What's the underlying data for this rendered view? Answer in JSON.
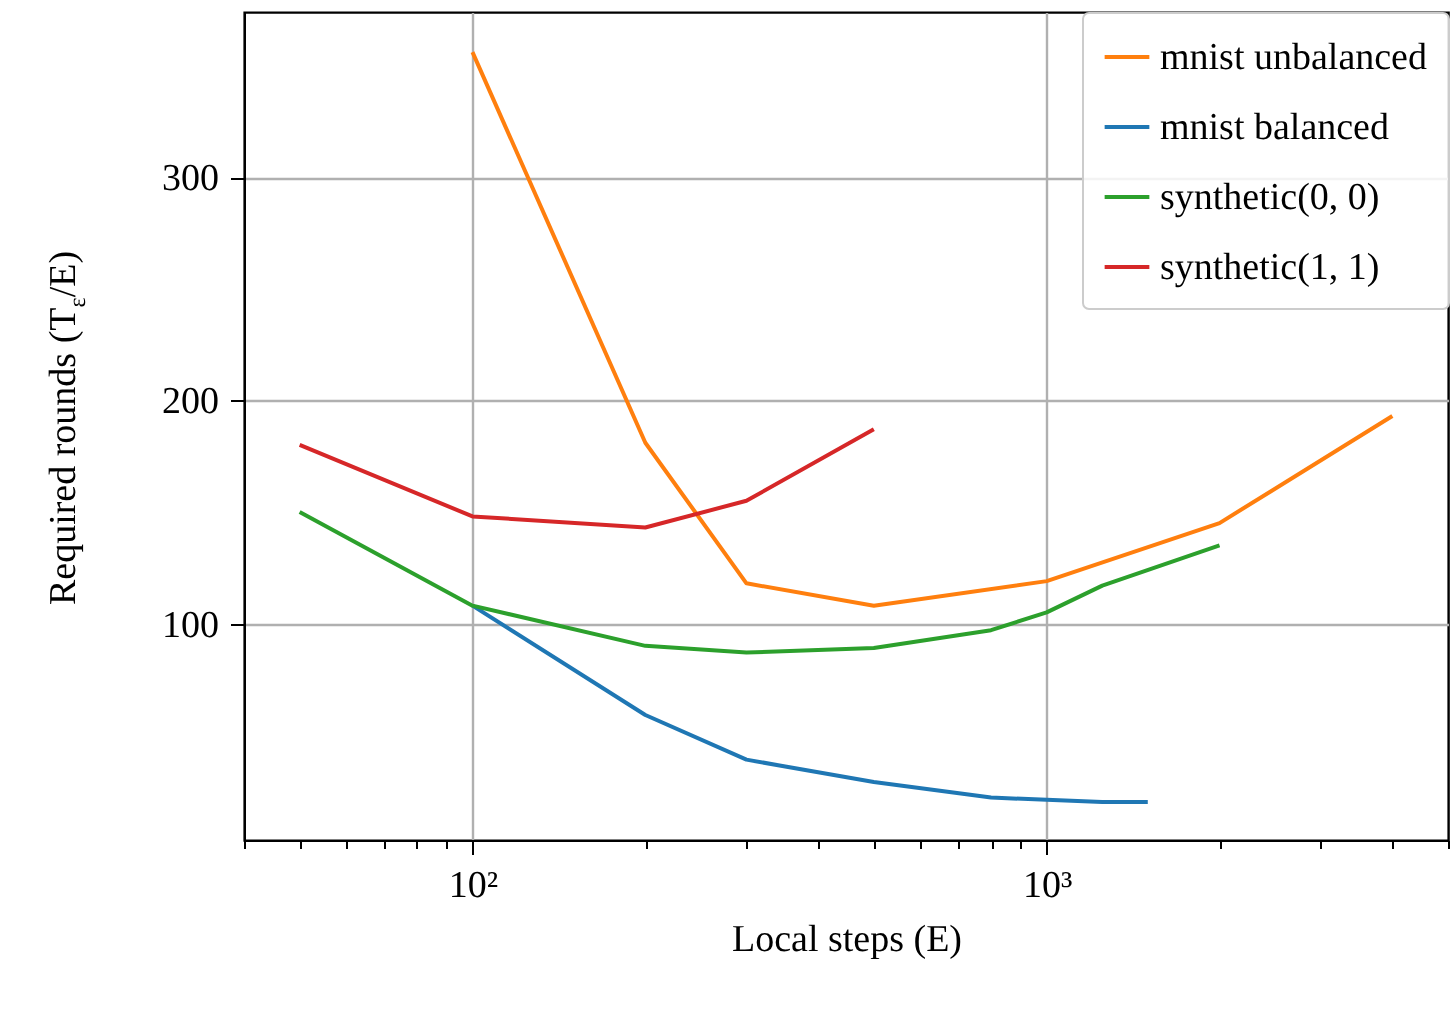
{
  "chart_data": {
    "type": "line",
    "xlabel": "Local steps (E)",
    "ylabel": "Required rounds (T$_{ε}$/E)",
    "log": "x",
    "grid": true,
    "legend": "top right",
    "xlim": [
      40,
      5000
    ],
    "xticks": [
      {
        "value": 40,
        "label": null
      },
      {
        "value": 50,
        "label": null
      },
      {
        "value": 60,
        "label": null
      },
      {
        "value": 70,
        "label": null
      },
      {
        "value": 80,
        "label": null
      },
      {
        "value": 90,
        "label": null
      },
      {
        "value": 100,
        "label": "10²"
      },
      {
        "value": 200,
        "label": null
      },
      {
        "value": 300,
        "label": null
      },
      {
        "value": 400,
        "label": null
      },
      {
        "value": 500,
        "label": null
      },
      {
        "value": 600,
        "label": null
      },
      {
        "value": 700,
        "label": null
      },
      {
        "value": 800,
        "label": null
      },
      {
        "value": 900,
        "label": null
      },
      {
        "value": 1000,
        "label": "10³"
      },
      {
        "value": 2000,
        "label": null
      },
      {
        "value": 3000,
        "label": null
      },
      {
        "value": 4000,
        "label": null
      },
      {
        "value": 5000,
        "label": null
      }
    ],
    "ylim": [
      3,
      374
    ],
    "yticks": [
      100,
      200,
      300
    ],
    "series": [
      {
        "name": "mnist unbalanced",
        "color": "#ff7f0e",
        "x": [
          100,
          200,
          300,
          500,
          1000,
          2000,
          4000
        ],
        "values": [
          356,
          181,
          118,
          108,
          119,
          145,
          193
        ]
      },
      {
        "name": "mnist balanced",
        "color": "#1f77b4",
        "x": [
          100,
          200,
          300,
          500,
          800,
          1000,
          1250,
          1500
        ],
        "values": [
          108,
          59,
          39,
          29,
          22,
          21,
          20,
          20
        ]
      },
      {
        "name": "synthetic(0, 0)",
        "color": "#2ca02c",
        "x": [
          50,
          100,
          200,
          300,
          500,
          800,
          1000,
          1250,
          2000
        ],
        "values": [
          150,
          108,
          90,
          87,
          89,
          97,
          105,
          117,
          135
        ]
      },
      {
        "name": "synthetic(1, 1)",
        "color": "#d62728",
        "x": [
          50,
          100,
          200,
          300,
          500
        ],
        "values": [
          180,
          148,
          143,
          155,
          187
        ]
      }
    ]
  }
}
